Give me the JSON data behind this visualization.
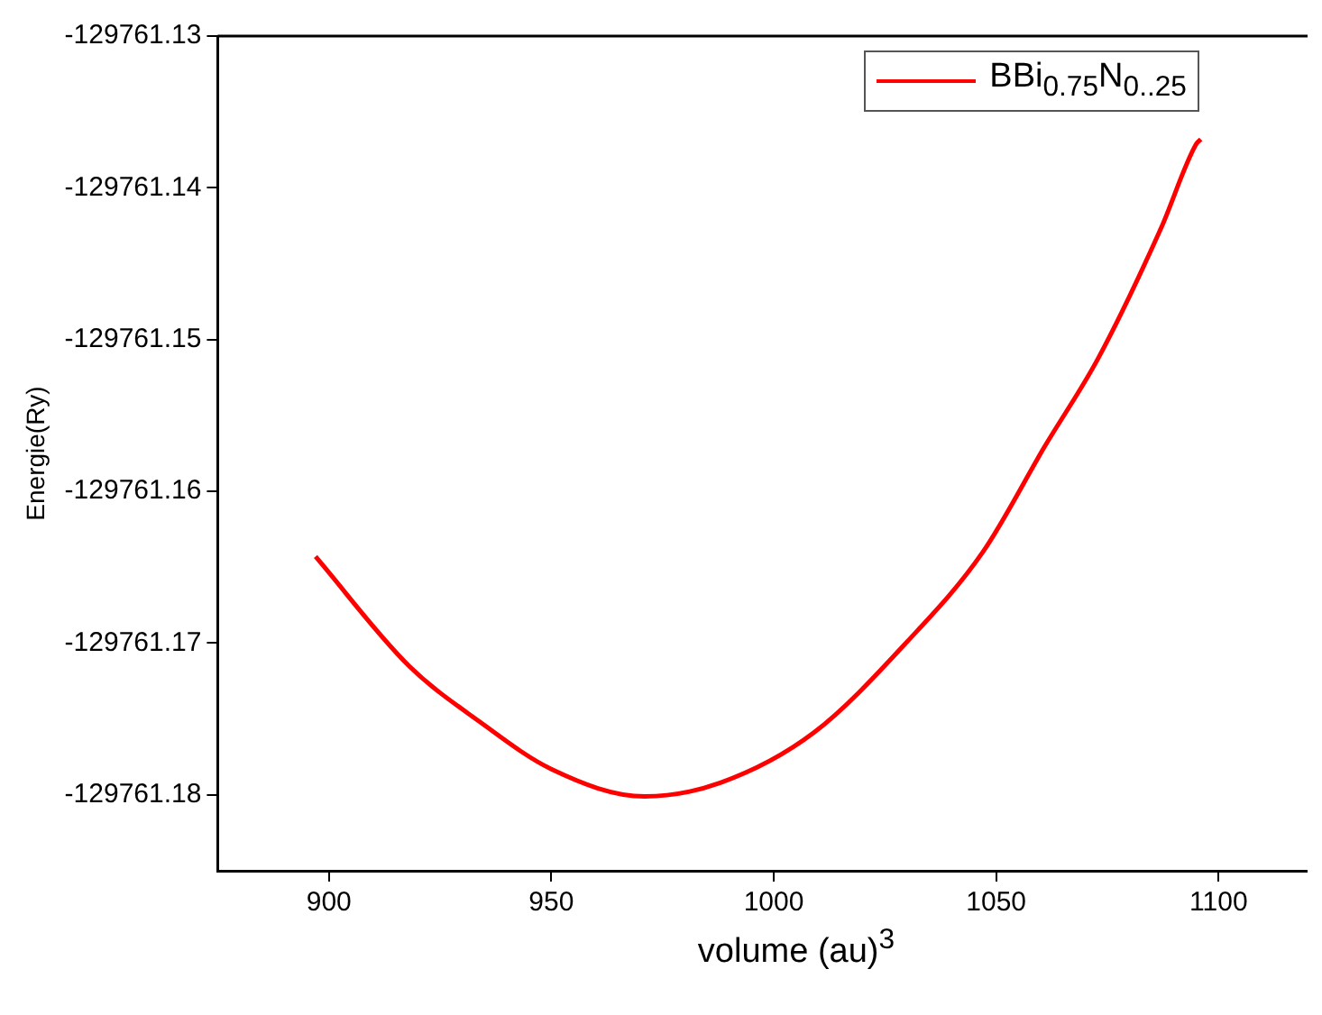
{
  "chart_data": {
    "type": "line",
    "xlabel": "volume (au)$^{3}$",
    "ylabel": "Energie(Ry)",
    "xlim": [
      875,
      1120
    ],
    "xticks": [
      900,
      950,
      1000,
      1050,
      1100
    ],
    "ylim": [
      -129761.185,
      -129761.13
    ],
    "yticks": [
      -129761.18,
      -129761.17,
      -129761.16,
      -129761.15,
      -129761.14,
      -129761.13
    ],
    "series": [
      {
        "name": "BBi$_{0.75}$N$_{0..25}$",
        "color": "#ff0000",
        "x": [
          897,
          918,
          934,
          950,
          971,
          988,
          1009,
          1030,
          1047,
          1061,
          1073,
          1087,
          1095,
          1096
        ],
        "values": [
          -129761.1643,
          -129761.1715,
          -129761.1752,
          -129761.1783,
          -129761.1801,
          -129761.1792,
          -129761.1759,
          -129761.1699,
          -129761.164,
          -129761.157,
          -129761.1512,
          -129761.1427,
          -129761.1371,
          -129761.1368
        ]
      }
    ],
    "grid": false,
    "legend": "top right",
    "marker": "none",
    "line_style": "solid"
  }
}
